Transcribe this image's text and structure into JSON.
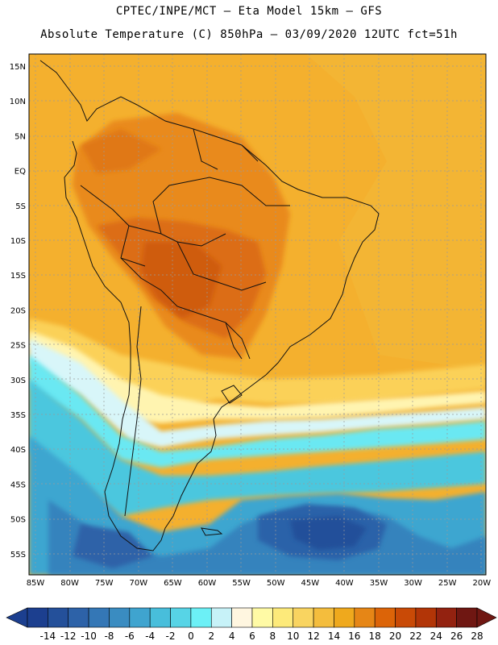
{
  "header": {
    "line1": "CPTEC/INPE/MCT –  Eta Model 15km – GFS",
    "line2": "Absolute Temperature (C) 850hPa – 03/09/2020 12UTC fct=51h"
  },
  "map": {
    "lat_labels": [
      "15N",
      "10N",
      "5N",
      "EQ",
      "5S",
      "10S",
      "15S",
      "20S",
      "25S",
      "30S",
      "35S",
      "40S",
      "45S",
      "50S",
      "55S"
    ],
    "lon_labels": [
      "85W",
      "80W",
      "75W",
      "70W",
      "65W",
      "60W",
      "55W",
      "50W",
      "45W",
      "40W",
      "35W",
      "30W",
      "25W",
      "20W"
    ]
  },
  "colorbar": {
    "ticks": [
      "-14",
      "-12",
      "-10",
      "-8",
      "-6",
      "-4",
      "-2",
      "0",
      "2",
      "4",
      "6",
      "8",
      "10",
      "12",
      "14",
      "16",
      "18",
      "20",
      "22",
      "24",
      "26",
      "28"
    ],
    "colors": [
      "#1c3f8f",
      "#24509a",
      "#2d62a8",
      "#3477b6",
      "#3a8cc1",
      "#3fa4cf",
      "#48bedb",
      "#57d4e6",
      "#6cf0f6",
      "#c7f2f8",
      "#fff6e0",
      "#fffaa5",
      "#fdea7a",
      "#f9d460",
      "#f4bd3d",
      "#efa91d",
      "#e68616",
      "#dc6408",
      "#c94a06",
      "#b23507",
      "#932210",
      "#6f1712"
    ]
  }
}
